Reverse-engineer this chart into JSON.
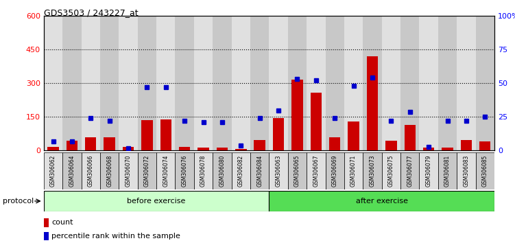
{
  "title": "GDS3503 / 243227_at",
  "categories": [
    "GSM306062",
    "GSM306064",
    "GSM306066",
    "GSM306068",
    "GSM306070",
    "GSM306072",
    "GSM306074",
    "GSM306076",
    "GSM306078",
    "GSM306080",
    "GSM306082",
    "GSM306084",
    "GSM306063",
    "GSM306065",
    "GSM306067",
    "GSM306069",
    "GSM306071",
    "GSM306073",
    "GSM306075",
    "GSM306077",
    "GSM306079",
    "GSM306081",
    "GSM306083",
    "GSM306085"
  ],
  "count_values": [
    18,
    45,
    60,
    60,
    18,
    135,
    140,
    18,
    15,
    15,
    8,
    48,
    145,
    315,
    258,
    60,
    130,
    420,
    45,
    115,
    15,
    15,
    48,
    42
  ],
  "percentile_values": [
    7,
    7,
    24,
    22,
    2,
    47,
    47,
    22,
    21,
    21,
    4,
    24,
    30,
    53,
    52,
    24,
    48,
    54,
    22,
    29,
    3,
    22,
    22,
    25
  ],
  "before_exercise_count": 12,
  "after_exercise_count": 12,
  "bar_color": "#cc0000",
  "dot_color": "#0000cc",
  "before_bg": "#ccffcc",
  "after_bg": "#55dd55",
  "col_bg_even": "#e0e0e0",
  "col_bg_odd": "#c8c8c8",
  "ylim_left": [
    0,
    600
  ],
  "ylim_right": [
    0,
    100
  ],
  "yticks_left": [
    0,
    150,
    300,
    450,
    600
  ],
  "yticks_right": [
    0,
    25,
    50,
    75,
    100
  ],
  "ytick_right_labels": [
    "0",
    "25",
    "50",
    "75",
    "100%"
  ],
  "grid_lines": [
    150,
    300,
    450
  ],
  "legend_count": "count",
  "legend_pct": "percentile rank within the sample",
  "protocol_label": "protocol",
  "before_label": "before exercise",
  "after_label": "after exercise"
}
